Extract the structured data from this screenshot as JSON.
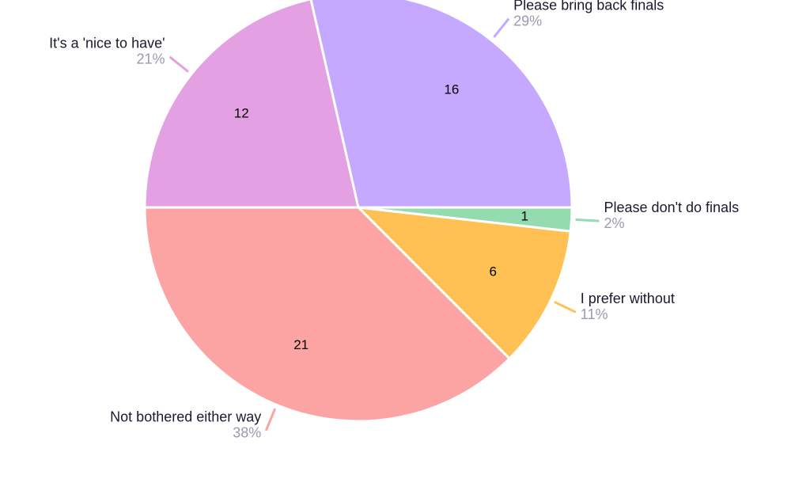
{
  "chart_data": {
    "type": "pie",
    "categories": [
      "Please don't do finals",
      "I prefer without",
      "Not bothered either way",
      "It's a 'nice to have'",
      "Please bring back finals"
    ],
    "values": [
      1,
      6,
      21,
      12,
      16
    ],
    "percent_labels": [
      "2%",
      "11%",
      "38%",
      "21%",
      "29%"
    ],
    "colors": [
      "#94dbb0",
      "#ffc154",
      "#fca3a3",
      "#e3a0e3",
      "#c5a8ff"
    ]
  }
}
